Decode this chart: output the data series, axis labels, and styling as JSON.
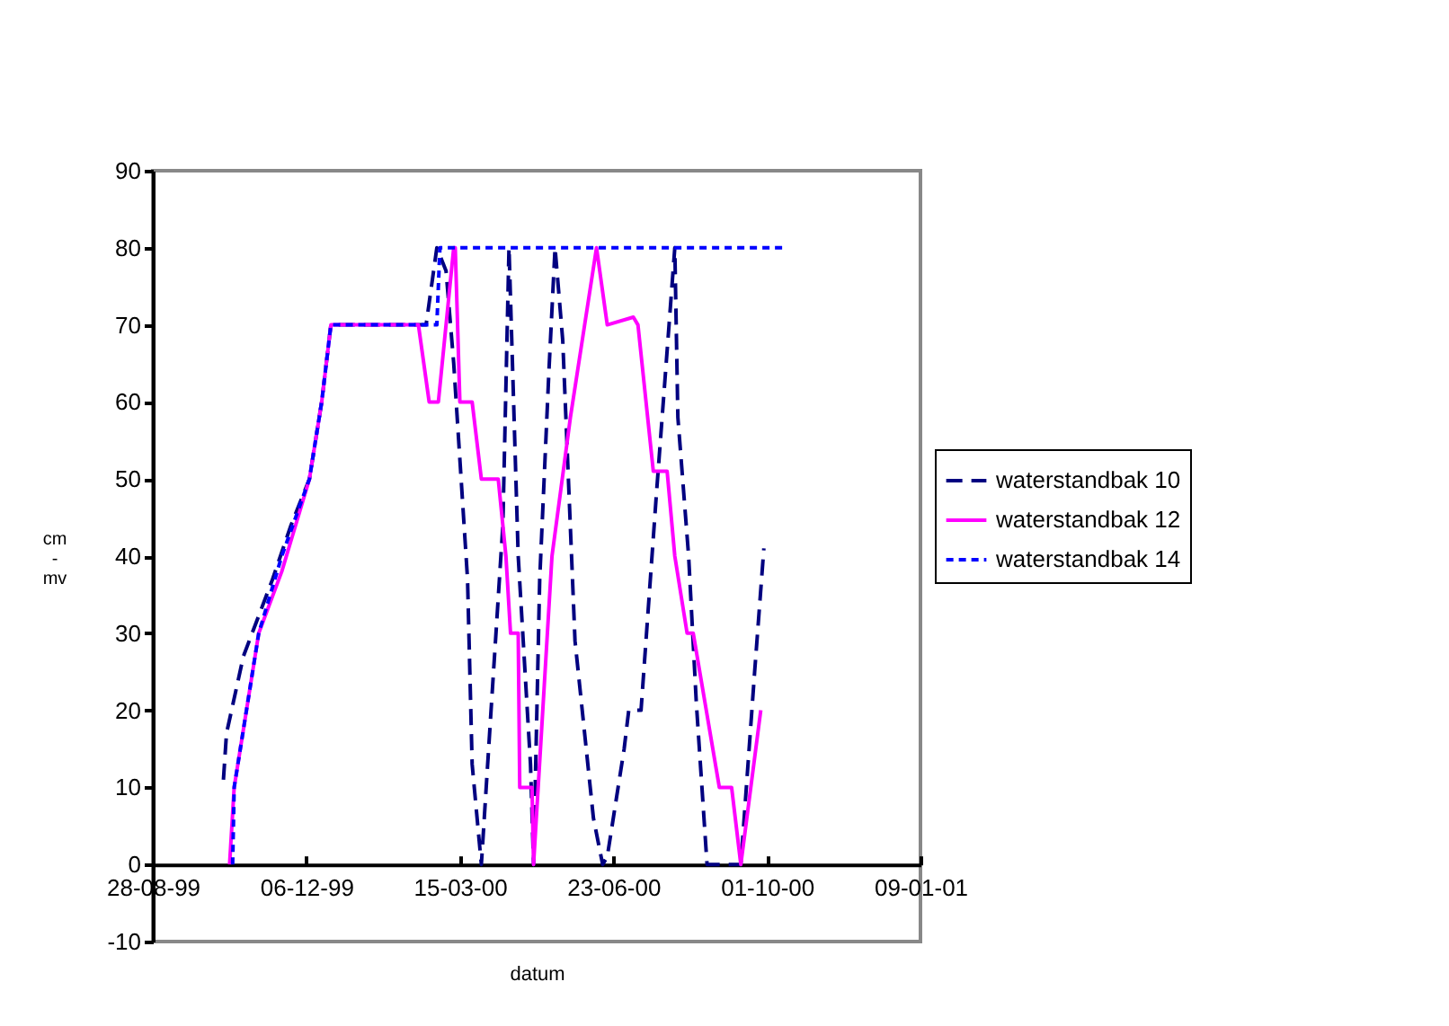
{
  "chart_data": {
    "type": "line",
    "xlabel": "datum",
    "ylabel": "cm\n-\nmv",
    "xlim": [
      "1999-08-28",
      "2001-01-09"
    ],
    "xticks": [
      {
        "value": "1999-08-28",
        "label": "28-08-99"
      },
      {
        "value": "1999-12-06",
        "label": "06-12-99"
      },
      {
        "value": "2000-03-15",
        "label": "15-03-00"
      },
      {
        "value": "2000-06-23",
        "label": "23-06-00"
      },
      {
        "value": "2000-10-01",
        "label": "01-10-00"
      },
      {
        "value": "2001-01-09",
        "label": "09-01-01"
      }
    ],
    "ylim": [
      -10,
      90
    ],
    "yticks": [
      -10,
      0,
      10,
      20,
      30,
      40,
      50,
      60,
      70,
      80,
      90
    ],
    "grid": false,
    "legend": "right",
    "marker": "none",
    "series": [
      {
        "name": "waterstandbak 10",
        "color": "#000080",
        "line_style": "dashed",
        "x": [
          "1999-10-13",
          "1999-10-15",
          "1999-10-26",
          "1999-11-14",
          "1999-11-26",
          "1999-12-08",
          "1999-12-16",
          "1999-12-22",
          "2000-02-22",
          "2000-02-29",
          "2000-03-06",
          "2000-03-11",
          "2000-03-20",
          "2000-03-23",
          "2000-03-29",
          "2000-04-04",
          "2000-04-12",
          "2000-04-16",
          "2000-04-22",
          "2000-04-30",
          "2000-05-02",
          "2000-05-06",
          "2000-05-12",
          "2000-05-16",
          "2000-05-21",
          "2000-05-29",
          "2000-06-10",
          "2000-06-16",
          "2000-06-19",
          "2000-06-30",
          "2000-07-03",
          "2000-07-11",
          "2000-07-21",
          "2000-07-27",
          "2000-08-02",
          "2000-08-04",
          "2000-08-11",
          "2000-08-16",
          "2000-08-23",
          "2000-09-14",
          "2000-09-23",
          "2000-09-29"
        ],
        "values": [
          11,
          17,
          27,
          37,
          44,
          50,
          60,
          70,
          70,
          80,
          77,
          65,
          37,
          13,
          0,
          19,
          44,
          80,
          40,
          13,
          0,
          37,
          64,
          80,
          68,
          29,
          6,
          0,
          1,
          15,
          20,
          20,
          48,
          64,
          80,
          58,
          40,
          21,
          0,
          0,
          25,
          41
        ]
      },
      {
        "name": "waterstandbak 12",
        "color": "#ff00ff",
        "line_style": "solid",
        "x": [
          "1999-10-17",
          "1999-10-20",
          "1999-10-28",
          "1999-11-05",
          "1999-11-20",
          "1999-12-08",
          "1999-12-16",
          "1999-12-22",
          "2000-02-17",
          "2000-02-24",
          "2000-03-01",
          "2000-03-11",
          "2000-03-12",
          "2000-03-15",
          "2000-03-23",
          "2000-03-29",
          "2000-04-09",
          "2000-04-14",
          "2000-04-17",
          "2000-04-22",
          "2000-04-23",
          "2000-05-01",
          "2000-05-02",
          "2000-05-14",
          "2000-05-26",
          "2000-06-12",
          "2000-06-19",
          "2000-07-06",
          "2000-07-09",
          "2000-07-19",
          "2000-07-28",
          "2000-08-02",
          "2000-08-10",
          "2000-08-14",
          "2000-08-31",
          "2000-09-08",
          "2000-09-14",
          "2000-09-27"
        ],
        "values": [
          0,
          10,
          20,
          30,
          38,
          50,
          60,
          70,
          70,
          60,
          60,
          80,
          80,
          60,
          60,
          50,
          50,
          40,
          30,
          30,
          10,
          10,
          0,
          40,
          58,
          80,
          70,
          71,
          70,
          51,
          51,
          40,
          30,
          30,
          10,
          10,
          0,
          20
        ]
      },
      {
        "name": "waterstandbak 14",
        "color": "#0000ff",
        "line_style": "dotted",
        "x": [
          "1999-10-19",
          "1999-10-20",
          "1999-10-28",
          "1999-11-05",
          "1999-11-20",
          "1999-12-08",
          "1999-12-16",
          "1999-12-22",
          "2000-02-29",
          "2000-03-02",
          "2000-10-12"
        ],
        "values": [
          0,
          10,
          20,
          30,
          40,
          50,
          60,
          70,
          70,
          80,
          80
        ]
      }
    ]
  }
}
